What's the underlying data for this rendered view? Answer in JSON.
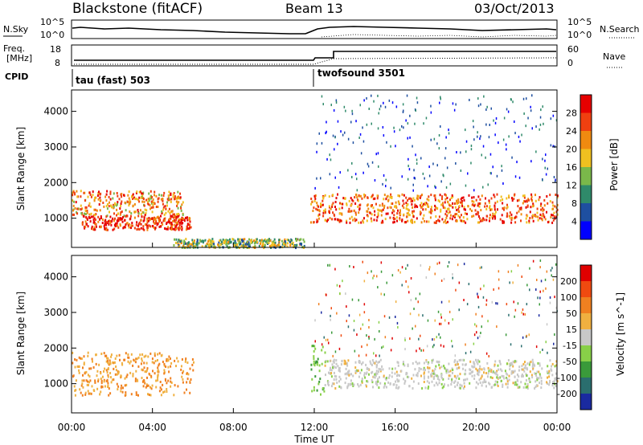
{
  "header": {
    "station": "Blackstone (fitACF)",
    "beam": "Beam 13",
    "date": "03/Oct/2013"
  },
  "noise_panel": {
    "left_label": "N.Sky",
    "right_label": "N.Search",
    "left_ticks": [
      "10^5",
      "10^0"
    ],
    "right_ticks": [
      "10^5",
      "10^0"
    ]
  },
  "freq_panel": {
    "left_label_1": "Freq.",
    "left_label_2": "[MHz]",
    "right_label": "Nave",
    "left_ticks": [
      "18",
      "8"
    ],
    "right_ticks": [
      "60",
      "0"
    ]
  },
  "cpid": {
    "label": "CPID",
    "segments": [
      {
        "start_hour": 0,
        "name": "tau (fast) 503"
      },
      {
        "start_hour": 12.0,
        "name": "twofsound 3501"
      }
    ]
  },
  "x_axis": {
    "label": "Time UT",
    "ticks": [
      "00:00",
      "04:00",
      "08:00",
      "12:00",
      "16:00",
      "20:00",
      "00:00"
    ],
    "range_hours": [
      0,
      24
    ]
  },
  "power_panel": {
    "ylabel": "Slant Range [km]",
    "yticks": [
      "1000",
      "2000",
      "3000",
      "4000"
    ],
    "colorbar_label": "Power [dB]",
    "colorbar_ticks": [
      "4",
      "8",
      "12",
      "16",
      "20",
      "24",
      "28"
    ],
    "colors": [
      "#0000ff",
      "#1e4fa0",
      "#2f8a6a",
      "#7ab84a",
      "#f0c020",
      "#f08a10",
      "#f04010",
      "#e60000"
    ]
  },
  "velocity_panel": {
    "ylabel": "Slant Range [km]",
    "yticks": [
      "1000",
      "2000",
      "3000",
      "4000"
    ],
    "colorbar_label": "Velocity [m s^-1]",
    "colorbar_ticks": [
      "200",
      "100",
      "50",
      "15",
      "-15",
      "-50",
      "-100",
      "-200"
    ],
    "colors": [
      "#1a2aa0",
      "#2a6e6e",
      "#3a9a3a",
      "#88d048",
      "#c8c8c8",
      "#f0b040",
      "#f08020",
      "#f04a10",
      "#e00000"
    ]
  },
  "chart_data": {
    "type": "heatmap",
    "x_unit": "hours UT",
    "y_unit": "km",
    "ylim": [
      180,
      4600
    ],
    "power_bands": [
      {
        "from_hour": 0.0,
        "to_hour": 5.5,
        "range_km": [
          1100,
          1800
        ],
        "level": 20
      },
      {
        "from_hour": 0.5,
        "to_hour": 5.9,
        "range_km": [
          700,
          1100
        ],
        "level": 26
      },
      {
        "from_hour": 5.0,
        "to_hour": 11.5,
        "range_km": [
          200,
          450
        ],
        "level": 12
      },
      {
        "from_hour": 11.8,
        "to_hour": 24.0,
        "range_km": [
          900,
          1700
        ],
        "level": 22
      }
    ],
    "velocity_bands": [
      {
        "from_hour": 0.0,
        "to_hour": 6.0,
        "range_km": [
          700,
          1900
        ],
        "velocity": -50
      },
      {
        "from_hour": 11.8,
        "to_hour": 12.5,
        "range_km": [
          700,
          2100
        ],
        "velocity": 50
      },
      {
        "from_hour": 12.5,
        "to_hour": 24.0,
        "range_km": [
          900,
          1700
        ],
        "velocity": 0
      }
    ]
  }
}
